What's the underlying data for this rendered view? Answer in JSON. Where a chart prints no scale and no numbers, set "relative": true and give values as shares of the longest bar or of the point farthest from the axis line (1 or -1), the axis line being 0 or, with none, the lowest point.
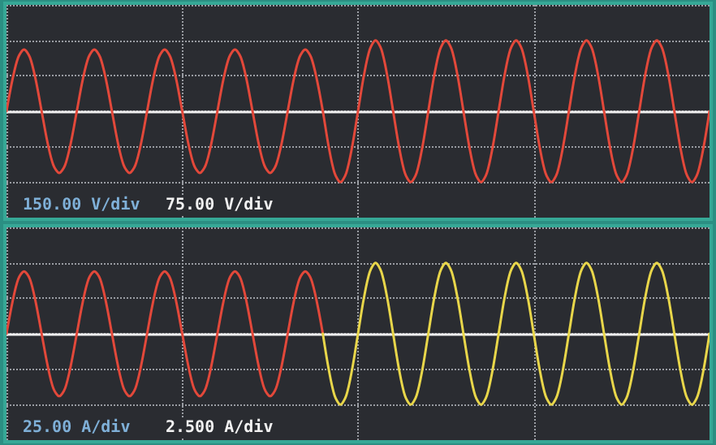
{
  "chart_data": [
    {
      "type": "line",
      "relative": true,
      "grid": true,
      "tick_labels": false,
      "line_style": "solid",
      "categories": [
        null,
        null,
        null,
        null,
        null,
        null,
        null,
        null,
        null,
        null,
        null,
        null,
        null,
        null,
        null,
        null,
        null,
        null,
        null,
        null,
        null,
        null,
        null,
        null,
        null,
        null,
        null,
        null,
        null,
        null,
        null,
        null,
        null,
        null,
        null,
        null,
        null,
        null,
        null,
        null,
        null,
        null,
        null,
        null,
        null,
        null,
        null,
        null,
        null,
        null,
        null,
        null,
        null,
        null,
        null,
        null,
        null,
        null,
        null,
        null,
        null,
        null,
        null,
        null,
        null,
        null,
        null,
        null,
        null,
        null,
        null,
        null,
        null,
        null,
        null,
        null,
        null,
        null,
        null,
        null,
        null,
        null,
        null,
        null,
        null,
        null,
        null,
        null,
        null,
        null,
        null,
        null,
        null,
        null,
        null,
        null,
        null,
        null,
        null,
        null,
        null,
        null,
        null,
        null,
        null,
        null,
        null,
        null,
        null,
        null,
        null,
        null,
        null,
        null,
        null,
        null,
        null,
        null,
        null,
        null,
        null
      ],
      "series": [
        {
          "color": "#e2483a",
          "values": [
            0,
            0.44,
            0.76,
            0.87,
            0.76,
            0.44,
            0,
            -0.44,
            -0.76,
            -0.87,
            -0.76,
            -0.44,
            0,
            0.44,
            0.76,
            0.87,
            0.76,
            0.44,
            0,
            -0.44,
            -0.76,
            -0.87,
            -0.76,
            -0.44,
            0,
            0.44,
            0.76,
            0.87,
            0.76,
            0.44,
            0,
            -0.44,
            -0.76,
            -0.87,
            -0.76,
            -0.44,
            0,
            0.44,
            0.76,
            0.87,
            0.76,
            0.44,
            0,
            -0.44,
            -0.76,
            -0.87,
            -0.76,
            -0.44,
            0,
            0.44,
            0.76,
            0.87,
            0.76,
            0.44,
            0,
            -0.5,
            -0.87,
            -1,
            -0.87,
            -0.5,
            0,
            0.5,
            0.87,
            1,
            0.87,
            0.5,
            0,
            -0.5,
            -0.87,
            -1,
            -0.87,
            -0.5,
            0,
            0.5,
            0.87,
            1,
            0.87,
            0.5,
            0,
            -0.5,
            -0.87,
            -1,
            -0.87,
            -0.5,
            0,
            0.5,
            0.87,
            1,
            0.87,
            0.5,
            0,
            -0.5,
            -0.87,
            -1,
            -0.87,
            -0.5,
            0,
            0.5,
            0.87,
            1,
            0.87,
            0.5,
            0,
            -0.5,
            -0.87,
            -1,
            -0.87,
            -0.5,
            0,
            0.5,
            0.87,
            1,
            0.87,
            0.5,
            0,
            -0.5,
            -0.87,
            -1,
            -0.87,
            -0.5,
            0
          ]
        }
      ],
      "annotations": [
        "150.00 V/div",
        "75.00 V/div"
      ]
    },
    {
      "type": "line",
      "relative": true,
      "grid": true,
      "tick_labels": false,
      "line_style": "solid",
      "categories": [
        null,
        null,
        null,
        null,
        null,
        null,
        null,
        null,
        null,
        null,
        null,
        null,
        null,
        null,
        null,
        null,
        null,
        null,
        null,
        null,
        null,
        null,
        null,
        null,
        null,
        null,
        null,
        null,
        null,
        null,
        null,
        null,
        null,
        null,
        null,
        null,
        null,
        null,
        null,
        null,
        null,
        null,
        null,
        null,
        null,
        null,
        null,
        null,
        null,
        null,
        null,
        null,
        null,
        null,
        null,
        null,
        null,
        null,
        null,
        null,
        null,
        null,
        null,
        null,
        null,
        null,
        null,
        null,
        null,
        null,
        null,
        null,
        null,
        null,
        null,
        null,
        null,
        null,
        null,
        null,
        null,
        null,
        null,
        null,
        null,
        null,
        null,
        null,
        null,
        null,
        null,
        null,
        null,
        null,
        null,
        null,
        null,
        null,
        null,
        null,
        null,
        null,
        null,
        null,
        null,
        null,
        null,
        null,
        null,
        null,
        null,
        null,
        null,
        null,
        null,
        null,
        null,
        null,
        null,
        null,
        null
      ],
      "series": [
        {
          "color": "#e2483a",
          "values": [
            0,
            0.44,
            0.77,
            0.88,
            0.77,
            0.44,
            0,
            -0.44,
            -0.77,
            -0.88,
            -0.77,
            -0.44,
            0,
            0.44,
            0.77,
            0.88,
            0.77,
            0.44,
            0,
            -0.44,
            -0.77,
            -0.88,
            -0.77,
            -0.44,
            0,
            0.44,
            0.77,
            0.88,
            0.77,
            0.44,
            0,
            -0.44,
            -0.77,
            -0.88,
            -0.77,
            -0.44,
            0,
            0.44,
            0.77,
            0.88,
            0.77,
            0.44,
            0,
            -0.44,
            -0.77,
            -0.88,
            -0.77,
            -0.44,
            0,
            0.44,
            0.77,
            0.88,
            0.77,
            0.44,
            0,
            null,
            null,
            null,
            null,
            null,
            null,
            null,
            null,
            null,
            null,
            null,
            null,
            null,
            null,
            null,
            null,
            null,
            null,
            null,
            null,
            null,
            null,
            null,
            null,
            null,
            null,
            null,
            null,
            null,
            null,
            null,
            null,
            null,
            null,
            null,
            null,
            null,
            null,
            null,
            null,
            null,
            null,
            null,
            null,
            null,
            null,
            null,
            null,
            null,
            null,
            null,
            null,
            null,
            null,
            null,
            null,
            null,
            null,
            null,
            null,
            null,
            null,
            null,
            null,
            null,
            null
          ]
        },
        {
          "color": "#e8d64a",
          "values": [
            null,
            null,
            null,
            null,
            null,
            null,
            null,
            null,
            null,
            null,
            null,
            null,
            null,
            null,
            null,
            null,
            null,
            null,
            null,
            null,
            null,
            null,
            null,
            null,
            null,
            null,
            null,
            null,
            null,
            null,
            null,
            null,
            null,
            null,
            null,
            null,
            null,
            null,
            null,
            null,
            null,
            null,
            null,
            null,
            null,
            null,
            null,
            null,
            null,
            null,
            null,
            null,
            null,
            null,
            0,
            -0.5,
            -0.87,
            -1,
            -0.87,
            -0.5,
            0,
            0.5,
            0.87,
            1,
            0.87,
            0.5,
            0,
            -0.5,
            -0.87,
            -1,
            -0.87,
            -0.5,
            0,
            0.5,
            0.87,
            1,
            0.87,
            0.5,
            0,
            -0.5,
            -0.87,
            -1,
            -0.87,
            -0.5,
            0,
            0.5,
            0.87,
            1,
            0.87,
            0.5,
            0,
            -0.5,
            -0.87,
            -1,
            -0.87,
            -0.5,
            0,
            0.5,
            0.87,
            1,
            0.87,
            0.5,
            0,
            -0.5,
            -0.87,
            -1,
            -0.87,
            -0.5,
            0,
            0.5,
            0.87,
            1,
            0.87,
            0.5,
            0,
            -0.5,
            -0.87,
            -1,
            -0.87,
            -0.5,
            0
          ]
        }
      ],
      "annotations": [
        "25.00 A/div",
        "2.500 A/div"
      ]
    }
  ]
}
